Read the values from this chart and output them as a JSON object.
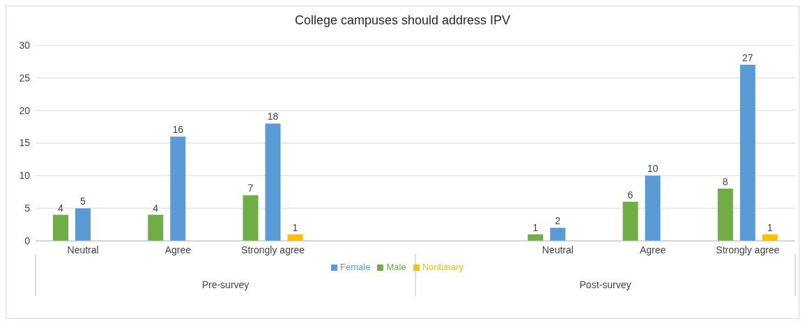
{
  "chart_data": {
    "type": "bar",
    "title": "College campuses should address IPV",
    "categories": [
      "Neutral",
      "Agree",
      "Strongly agree",
      null,
      null,
      "Neutral",
      "Agree",
      "Strongly agree"
    ],
    "annotations": [
      "Pre-survey",
      "Post-survey"
    ],
    "series": [
      {
        "name": "Male",
        "color": "#70ad47",
        "values": [
          4,
          4,
          7,
          null,
          null,
          1,
          6,
          8
        ]
      },
      {
        "name": "Female",
        "color": "#5b9bd5",
        "values": [
          5,
          16,
          18,
          null,
          null,
          2,
          10,
          27
        ]
      },
      {
        "name": "Nonbinary",
        "color": "#ffc000",
        "values": [
          null,
          null,
          1,
          null,
          null,
          null,
          null,
          1
        ]
      }
    ],
    "ylim": [
      0,
      30
    ],
    "yticks": [
      0,
      5,
      10,
      15,
      20,
      25,
      30
    ],
    "grid": "y",
    "legend": "bottom",
    "data_labels": true
  }
}
